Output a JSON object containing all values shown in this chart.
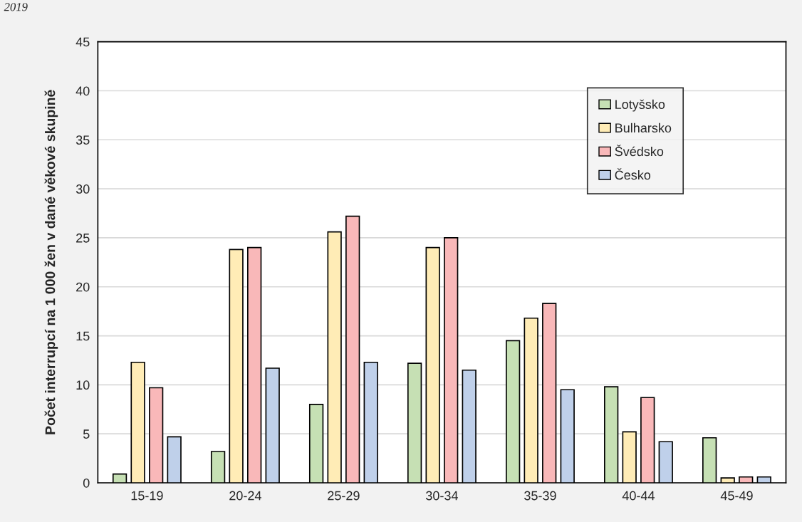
{
  "chart_data": {
    "type": "bar",
    "title": "2019",
    "ylabel": "Počet interrupcí na 1 000 žen v dané věkové skupině",
    "categories": [
      "15-19",
      "20-24",
      "25-29",
      "30-34",
      "35-39",
      "40-44",
      "45-49"
    ],
    "series": [
      {
        "name": "Lotyšsko",
        "color": "#c6e0b4",
        "values": [
          0.9,
          3.2,
          8.0,
          12.2,
          14.5,
          9.8,
          4.6
        ]
      },
      {
        "name": "Bulharsko",
        "color": "#ffecb6",
        "values": [
          12.3,
          23.8,
          25.6,
          24.0,
          16.8,
          5.2,
          0.5
        ]
      },
      {
        "name": "Švédsko",
        "color": "#f9b8b9",
        "values": [
          9.7,
          24.0,
          27.2,
          25.0,
          18.3,
          8.7,
          0.6
        ]
      },
      {
        "name": "Česko",
        "color": "#bfd0ea",
        "values": [
          4.7,
          11.7,
          12.3,
          11.5,
          9.5,
          4.2,
          0.6
        ]
      }
    ],
    "ylim": [
      0,
      45
    ],
    "yticks": [
      0,
      5,
      10,
      15,
      20,
      25,
      30,
      35,
      40,
      45
    ],
    "grid": "y",
    "legend": "top right"
  }
}
